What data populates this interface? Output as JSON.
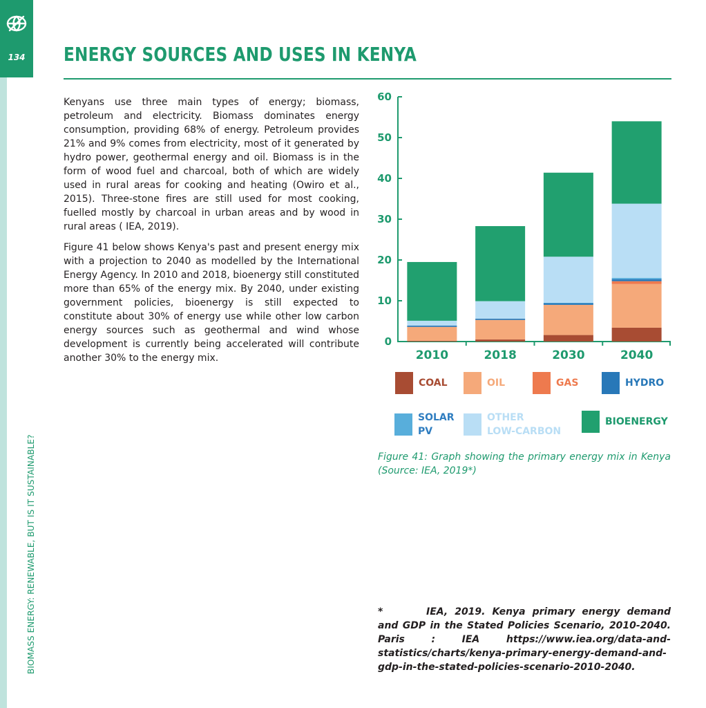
{
  "page": {
    "number": "134",
    "section_label": "BIOMASS ENERGY: RENEWABLE, BUT IS IT SUSTAINABLE?",
    "title": "ENERGY SOURCES AND USES IN KENYA"
  },
  "body": {
    "paragraph1": "Kenyans use three main types of energy; biomass, petroleum and electricity.  Biomass dominates energy consumption, providing 68% of energy.  Petroleum provides 21% and 9% comes from electricity, most of it generated by hydro power, geothermal energy and oil. Biomass is in the form of wood fuel and charcoal, both of which are widely used in rural areas for cooking and heating (Owiro et al., 2015). Three-stone fires are still used for most cooking, fuelled mostly by charcoal in urban areas and by wood in rural areas ( IEA, 2019).",
    "paragraph2": "Figure 41 below shows Kenya's past and present energy mix with a projection to 2040 as modelled by the International Energy Agency. In 2010 and 2018, bioenergy still constituted more than 65% of the energy mix.  By 2040, under existing government policies, bioenergy is still expected to constitute about 30% of energy use while other low carbon energy sources such as geothermal and wind whose development is currently being accelerated will contribute another 30% to the energy mix."
  },
  "chart_data": {
    "type": "bar",
    "stacked": true,
    "categories": [
      "2010",
      "2018",
      "2030",
      "2040"
    ],
    "ylim": [
      0,
      60
    ],
    "yticks": [
      0,
      10,
      20,
      30,
      40,
      50,
      60
    ],
    "grid": false,
    "series": [
      {
        "name": "COAL",
        "color": "#a84c33",
        "label_color": "#a84c33",
        "values": [
          0.2,
          0.5,
          1.6,
          3.4
        ]
      },
      {
        "name": "OIL",
        "color": "#f5a97a",
        "label_color": "#f5a97a",
        "values": [
          3.4,
          4.8,
          7.4,
          10.7
        ]
      },
      {
        "name": "GAS",
        "color": "#ee7a4e",
        "label_color": "#ee7a4e",
        "values": [
          0,
          0,
          0,
          0.7
        ]
      },
      {
        "name": "HYDRO",
        "color": "#2878b8",
        "label_color": "#2878b8",
        "values": [
          0.3,
          0.3,
          0.4,
          0.5
        ]
      },
      {
        "name": "SOLAR\nPV",
        "color": "#58aedb",
        "label_color": "#2f7dc0",
        "values": [
          0,
          0,
          0.1,
          0.3
        ]
      },
      {
        "name": "OTHER\nLOW-CARBON",
        "color": "#b9def5",
        "label_color": "#b9def5",
        "values": [
          1.2,
          4.3,
          11.3,
          18.2
        ]
      },
      {
        "name": "BIOENERGY",
        "color": "#21a06f",
        "label_color": "#1e9a6e",
        "values": [
          14.4,
          18.4,
          20.6,
          20.2
        ]
      }
    ]
  },
  "caption": "Figure 41: Graph showing the primary energy mix in Kenya (Source: IEA, 2019*)",
  "footnote": {
    "mark": "*",
    "text": "IEA, 2019. Kenya primary energy demand and GDP in the Stated Policies Scenario, 2010-2040.  Paris : IEA   https://www.iea.org/data-and-statistics/charts/kenya-primary-energy-demand-and-gdp-in-the-stated-policies-scenario-2010-2040."
  },
  "colors": {
    "brand_green": "#1e9a6e",
    "sidebar_light": "#bfe3dd"
  },
  "icons": {
    "logo": "globe-leaf-icon"
  }
}
